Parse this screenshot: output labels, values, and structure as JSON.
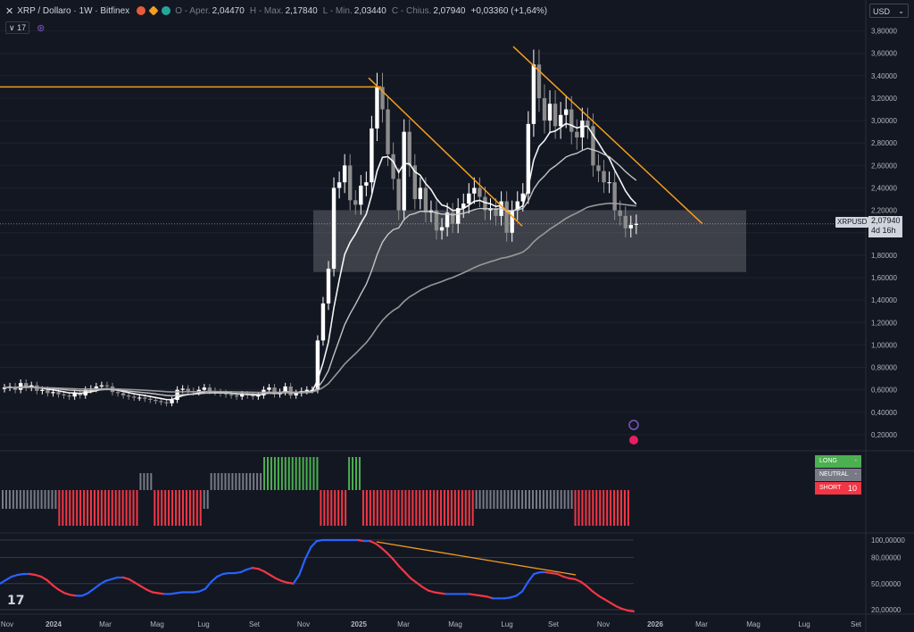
{
  "header": {
    "symbol": "XRP / Dollaro · 1W · Bitfinex",
    "open_label": "O - Aper.",
    "open_value": "2,04470",
    "high_label": "H - Max.",
    "high_value": "2,17840",
    "low_label": "L - Min.",
    "low_value": "2,03440",
    "close_label": "C - Chius.",
    "close_value": "2,07940",
    "change": "+0,03360 (+1,64%)",
    "indicator_count": "17",
    "currency": "USD"
  },
  "colors": {
    "background": "#131722",
    "up_candle": "#ffffff",
    "down_candle": "#8c8c8c",
    "trendline": "#f59d1c",
    "long": "#4caf50",
    "neutral": "#787b86",
    "short": "#f23645",
    "osc_up": "#2962ff",
    "osc_down": "#f23645"
  },
  "last_price": {
    "label": "XRPUSD",
    "value": "2,07940",
    "countdown": "4d 16h"
  },
  "signals": {
    "long_label": "LONG",
    "long_count": "-",
    "neutral_label": "NEUTRAL",
    "neutral_count": "-",
    "short_label": "SHORT",
    "short_count": "10"
  },
  "oscillator_labels": [
    "100,00000",
    "80,00000",
    "50,00000",
    "20,00000"
  ],
  "chart_data": {
    "type": "candlestick",
    "x_axis_labels": [
      "Nov",
      "2024",
      "Mar",
      "Mag",
      "Lug",
      "Set",
      "Nov",
      "2025",
      "Mar",
      "Mag",
      "Lug",
      "Set",
      "Nov",
      "2026",
      "Mar",
      "Mag",
      "Lug",
      "Set"
    ],
    "y_axis_labels": [
      "3,80000",
      "3,60000",
      "3,40000",
      "3,20000",
      "3,00000",
      "2,80000",
      "2,60000",
      "2,40000",
      "2,20000",
      "2,00000",
      "1,80000",
      "1,60000",
      "1,40000",
      "1,20000",
      "1,00000",
      "0,80000",
      "0,60000",
      "0,40000",
      "0,20000"
    ],
    "ylim": [
      0.12,
      3.9
    ],
    "close_prices": [
      0.62,
      0.63,
      0.6,
      0.66,
      0.62,
      0.64,
      0.59,
      0.6,
      0.57,
      0.58,
      0.56,
      0.55,
      0.54,
      0.57,
      0.55,
      0.6,
      0.61,
      0.63,
      0.64,
      0.63,
      0.58,
      0.57,
      0.55,
      0.54,
      0.53,
      0.53,
      0.52,
      0.51,
      0.5,
      0.49,
      0.48,
      0.51,
      0.6,
      0.61,
      0.59,
      0.58,
      0.6,
      0.62,
      0.59,
      0.58,
      0.57,
      0.56,
      0.55,
      0.54,
      0.56,
      0.55,
      0.54,
      0.55,
      0.6,
      0.62,
      0.56,
      0.58,
      0.63,
      0.55,
      0.57,
      0.59,
      0.6,
      0.6,
      1.04,
      1.37,
      1.68,
      2.4,
      2.45,
      2.6,
      2.29,
      2.25,
      2.42,
      2.45,
      2.93,
      3.3,
      3.1,
      2.7,
      2.48,
      2.2,
      2.9,
      2.6,
      2.3,
      2.4,
      2.18,
      2.2,
      2.02,
      2.05,
      2.18,
      2.08,
      2.22,
      2.26,
      2.35,
      2.4,
      2.32,
      2.2,
      2.22,
      2.15,
      2.28,
      2.0,
      2.2,
      2.28,
      2.35,
      2.97,
      3.5,
      3.2,
      3.0,
      3.15,
      2.95,
      3.05,
      3.1,
      2.9,
      2.85,
      3.0,
      2.95,
      2.6,
      2.55,
      2.45,
      2.45,
      2.2,
      2.15,
      2.04,
      2.07,
      2.08
    ],
    "ema_short": {
      "name": "EMA 20",
      "color": "#ffffff"
    },
    "ema_mid": {
      "name": "EMA 50",
      "color": "#cccccc"
    },
    "ema_long": {
      "name": "EMA 200",
      "color": "#9e9e9e"
    },
    "resistance_zone": [
      1.65,
      2.2
    ],
    "signal_bars": [
      "n",
      "n",
      "n",
      "n",
      "n",
      "n",
      "n",
      "n",
      "n",
      "n",
      "n",
      "n",
      "n",
      "n",
      "n",
      "n",
      "s",
      "s",
      "s",
      "s",
      "s",
      "s",
      "s",
      "s",
      "s",
      "s",
      "s",
      "s",
      "s",
      "s",
      "s",
      "s",
      "s",
      "s",
      "s",
      "s",
      "s",
      "s",
      "s",
      "n",
      "n",
      "n",
      "n",
      "s",
      "s",
      "s",
      "s",
      "s",
      "s",
      "s",
      "s",
      "s",
      "s",
      "s",
      "s",
      "s",
      "s",
      "n",
      "n",
      "n",
      "n",
      "n",
      "n",
      "n",
      "n",
      "n",
      "n",
      "n",
      "n",
      "n",
      "n",
      "n",
      "n",
      "n",
      "l",
      "l",
      "l",
      "l",
      "l",
      "l",
      "l",
      "l",
      "l",
      "l",
      "l",
      "l",
      "l",
      "l",
      "l",
      "l",
      "s",
      "s",
      "s",
      "s",
      "s",
      "s",
      "s",
      "s",
      "l",
      "l",
      "l",
      "l",
      "s",
      "s",
      "s",
      "s",
      "s",
      "s",
      "s",
      "s",
      "s",
      "s",
      "s",
      "s",
      "s",
      "s",
      "s",
      "s",
      "s",
      "s",
      "s",
      "s",
      "s",
      "s",
      "s",
      "s",
      "s",
      "s",
      "s",
      "s",
      "s",
      "s",
      "s",
      "s",
      "n",
      "n",
      "n",
      "n",
      "n",
      "n",
      "n",
      "n",
      "n",
      "n",
      "n",
      "n",
      "n",
      "n",
      "n",
      "n",
      "n",
      "n",
      "n",
      "n",
      "n",
      "n",
      "n",
      "n",
      "n",
      "n",
      "n",
      "n",
      "s",
      "s",
      "s",
      "s",
      "s",
      "s",
      "s",
      "s",
      "s",
      "s",
      "s",
      "s",
      "s",
      "s",
      "s",
      "s"
    ],
    "oscillator_values": [
      50,
      54,
      58,
      60,
      61,
      61,
      60,
      58,
      54,
      48,
      43,
      39,
      37,
      36,
      36,
      39,
      44,
      49,
      53,
      55,
      57,
      57,
      55,
      51,
      47,
      43,
      40,
      39,
      38,
      38,
      39,
      40,
      40,
      40,
      41,
      44,
      52,
      58,
      61,
      62,
      62,
      63,
      66,
      68,
      67,
      64,
      60,
      56,
      53,
      51,
      50,
      60,
      78,
      92,
      99,
      100,
      100,
      100,
      100,
      100,
      100,
      100,
      99,
      99,
      96,
      91,
      85,
      78,
      70,
      63,
      56,
      51,
      46,
      42,
      40,
      39,
      38,
      38,
      38,
      38,
      38,
      37,
      36,
      35,
      33,
      33,
      33,
      34,
      36,
      41,
      52,
      61,
      63,
      63,
      62,
      61,
      58,
      56,
      55,
      52,
      47,
      41,
      36,
      32,
      28,
      24,
      21,
      19,
      18
    ]
  }
}
